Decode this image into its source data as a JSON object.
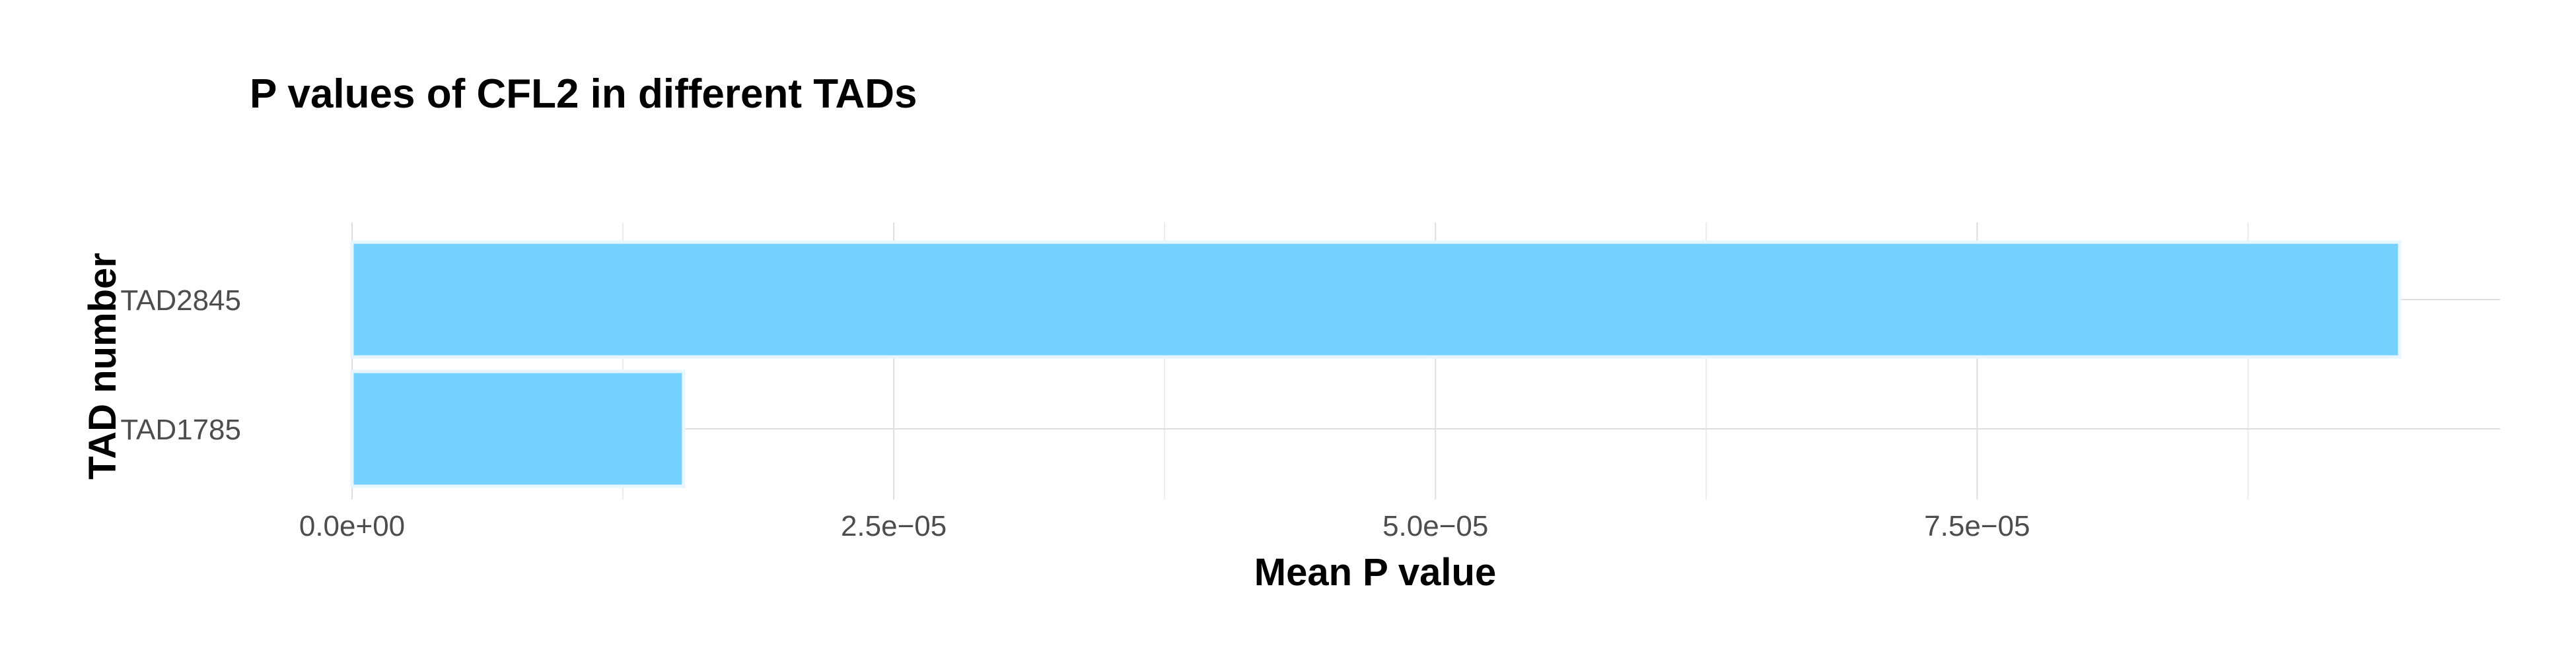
{
  "chart_data": {
    "type": "bar",
    "orientation": "horizontal",
    "title": "P values of CFL2 in different TADs",
    "xlabel": "Mean P value",
    "ylabel": "TAD number",
    "categories": [
      "TAD1785",
      "TAD2845"
    ],
    "values": [
      1.53e-05,
      9.45e-05
    ],
    "xlim": [
      0,
      9.93e-05
    ],
    "xticks": [
      0,
      2.5e-05,
      5e-05,
      7.5e-05
    ],
    "xtick_labels": [
      "0.0e+00",
      "2.5e−05",
      "5.0e−05",
      "7.5e−05"
    ],
    "bar_color": "#6ECFFF",
    "grid": true,
    "legend": "none"
  }
}
